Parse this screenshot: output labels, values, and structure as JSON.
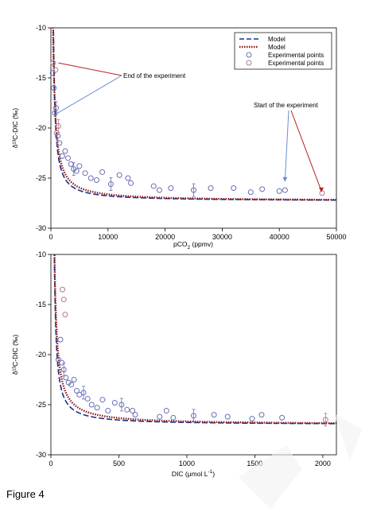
{
  "figure_caption": "Figure 4",
  "chart_data": [
    {
      "type": "scatter",
      "xlabel": "pCO",
      "xlabel_sub": "2",
      "xlabel_unit": " (ppmv)",
      "ylabel": "δ¹³C-DIC (‰)",
      "xlim": [
        0,
        50000
      ],
      "ylim": [
        -30,
        -10
      ],
      "xticks": [
        "0",
        "10000",
        "20000",
        "30000",
        "40000",
        "50000"
      ],
      "yticks": [
        "-10",
        "-15",
        "-20",
        "-25",
        "-30"
      ],
      "legend_position": "top-right",
      "legend": [
        {
          "label": "Model",
          "style": "dash",
          "color": "#1f2f8a"
        },
        {
          "label": "Model",
          "style": "dot",
          "color": "#8b1a1a"
        },
        {
          "label": "Experimental points",
          "style": "circle",
          "color": "#6a6fb5"
        },
        {
          "label": "Experimental points",
          "style": "circle",
          "color": "#b07a8a"
        }
      ],
      "annotations": [
        {
          "text": "End of the experiment",
          "x": 900,
          "y": -13.5
        },
        {
          "text": "Start of the experiment",
          "x": 47500,
          "y": -26.5
        }
      ],
      "series": [
        {
          "name": "Model",
          "style": "dash",
          "color": "#1f2f8a",
          "k": 5200,
          "x0": 150,
          "c": -27.3
        },
        {
          "name": "Model",
          "style": "dot",
          "color": "#8b1a1a",
          "k": 6800,
          "x0": 0,
          "c": -27.3
        },
        {
          "name": "Experimental points",
          "color": "#6a6fb5",
          "x": [
            300,
            500,
            700,
            900,
            1200,
            1500,
            2000,
            2500,
            3000,
            3500,
            4000,
            4500,
            5000,
            6000,
            7000,
            8000,
            9000,
            10500,
            12000,
            13500,
            14000,
            18000,
            19000,
            21000,
            25000,
            28000,
            32000,
            35000,
            37000,
            40000,
            41000
          ],
          "y": [
            -14.5,
            -16.0,
            -18.5,
            -18.0,
            -20.8,
            -21.5,
            -22.8,
            -22.3,
            -23.0,
            -23.6,
            -24.1,
            -24.3,
            -23.8,
            -24.5,
            -25.0,
            -25.2,
            -24.4,
            -25.6,
            -24.7,
            -25.0,
            -25.5,
            -25.8,
            -26.2,
            -26.0,
            -26.2,
            -26.0,
            -26.0,
            -26.4,
            -26.1,
            -26.3,
            -26.2
          ]
        },
        {
          "name": "Experimental points",
          "color": "#b07a8a",
          "x": [
            400,
            800,
            1000,
            1300,
            47500
          ],
          "y": [
            -13.5,
            -14.2,
            -20.5,
            -19.8,
            -26.5
          ]
        }
      ]
    },
    {
      "type": "scatter",
      "xlabel": "DIC (μmol L",
      "xlabel_sup": "-1",
      "xlabel_unit": ")",
      "ylabel": "δ¹³C-DIC (‰)",
      "xlim": [
        0,
        2100
      ],
      "ylim": [
        -30,
        -10
      ],
      "xticks": [
        "0",
        "500",
        "1000",
        "1500",
        "2000"
      ],
      "yticks": [
        "-10",
        "-15",
        "-20",
        "-25",
        "-30"
      ],
      "series": [
        {
          "name": "Model",
          "style": "dash",
          "color": "#1f2f8a",
          "k": 230,
          "x0": 20,
          "c": -27.0
        },
        {
          "name": "Model",
          "style": "dot",
          "color": "#8b1a1a",
          "k": 330,
          "x0": 15,
          "c": -27.0
        },
        {
          "name": "Experimental points",
          "color": "#6a6fb5",
          "x": [
            55,
            70,
            80,
            95,
            110,
            130,
            150,
            170,
            190,
            210,
            240,
            270,
            300,
            340,
            380,
            420,
            470,
            520,
            560,
            600,
            620,
            800,
            850,
            900,
            1050,
            1200,
            1300,
            1480,
            1550,
            1700
          ],
          "y": [
            -20.5,
            -18.5,
            -20.8,
            -21.5,
            -22.3,
            -22.8,
            -23.0,
            -22.5,
            -23.6,
            -24.0,
            -23.8,
            -24.4,
            -25.0,
            -25.3,
            -24.5,
            -25.6,
            -24.8,
            -25.0,
            -25.5,
            -25.6,
            -26.0,
            -26.2,
            -25.6,
            -26.3,
            -26.1,
            -26.0,
            -26.2,
            -26.4,
            -26.0,
            -26.3
          ]
        },
        {
          "name": "Experimental points",
          "color": "#b07a8a",
          "x": [
            85,
            95,
            105,
            2020
          ],
          "y": [
            -13.5,
            -14.5,
            -16.0,
            -26.5
          ]
        }
      ]
    }
  ]
}
